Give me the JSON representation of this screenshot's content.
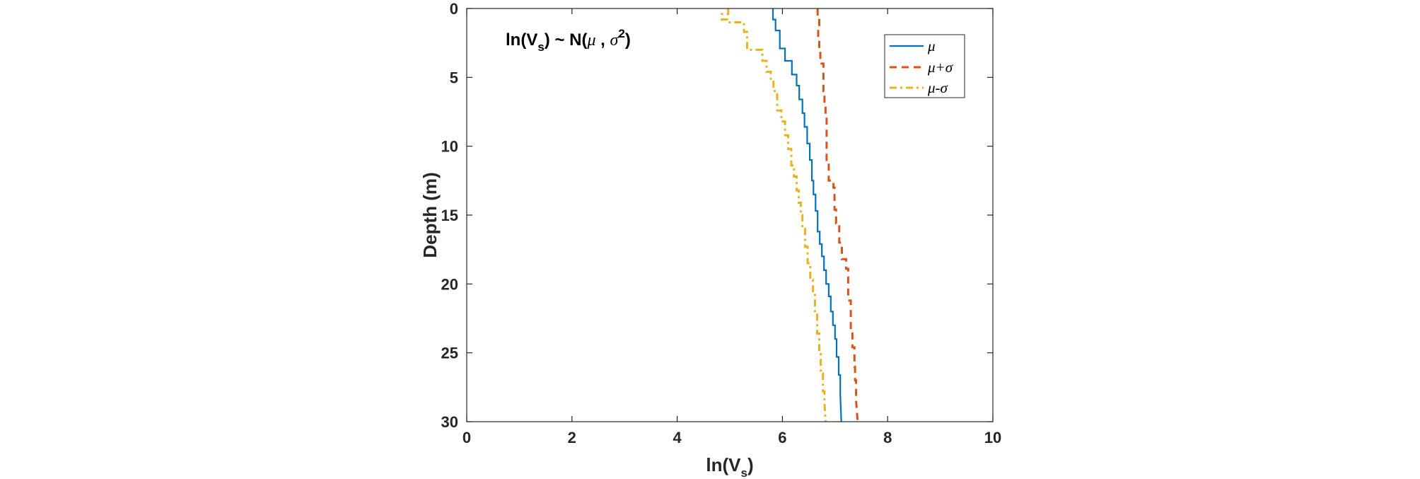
{
  "chart_data": {
    "type": "line",
    "annotation": {
      "parts": [
        "ln(V",
        "s",
        ") ~ N(",
        "μ",
        " , ",
        "σ",
        "2",
        ")"
      ]
    },
    "xlabel": {
      "main": "ln(V",
      "sub": "s",
      "close": ")"
    },
    "ylabel": "Depth (m)",
    "xlim": [
      0,
      10
    ],
    "ylim": [
      0,
      30
    ],
    "y_reversed": true,
    "x_ticks": [
      0,
      2,
      4,
      6,
      8,
      10
    ],
    "x_tick_labels": [
      "0",
      "2",
      "4",
      "6",
      "8",
      "10"
    ],
    "y_ticks": [
      0,
      5,
      10,
      15,
      20,
      25,
      30
    ],
    "y_tick_labels": [
      "0",
      "5",
      "10",
      "15",
      "20",
      "25",
      "30"
    ],
    "grid": false,
    "legend_position": "top-right",
    "series": [
      {
        "name": "μ",
        "color": "#0072BD",
        "style": "solid",
        "x": [
          5.82,
          5.82,
          5.87,
          5.87,
          5.95,
          5.95,
          6.05,
          6.05,
          6.18,
          6.18,
          6.27,
          6.27,
          6.32,
          6.32,
          6.38,
          6.38,
          6.42,
          6.42,
          6.47,
          6.47,
          6.52,
          6.52,
          6.56,
          6.56,
          6.59,
          6.59,
          6.63,
          6.63,
          6.67,
          6.67,
          6.71,
          6.71,
          6.75,
          6.75,
          6.79,
          6.79,
          6.83,
          6.83,
          6.88,
          6.88,
          6.92,
          6.92,
          6.96,
          6.96,
          7.0,
          7.0,
          7.03,
          7.03,
          7.07,
          7.07,
          7.1,
          7.1,
          7.12
        ],
        "depth": [
          0,
          0.8,
          0.8,
          1.6,
          1.6,
          2.9,
          2.9,
          3.8,
          3.8,
          4.8,
          4.8,
          5.6,
          5.6,
          6.6,
          6.6,
          7.6,
          7.6,
          8.6,
          8.6,
          9.8,
          9.8,
          11.0,
          11.0,
          12.5,
          12.5,
          13.5,
          13.5,
          14.7,
          14.7,
          16.2,
          16.2,
          17.1,
          17.1,
          18.0,
          18.0,
          19.0,
          19.0,
          20.0,
          20.0,
          20.9,
          20.9,
          22.0,
          22.0,
          23.0,
          23.0,
          24.0,
          24.0,
          25.3,
          25.3,
          26.6,
          26.6,
          28.0,
          30.0
        ]
      },
      {
        "name": "μ+σ",
        "color": "#D95319",
        "style": "dashed",
        "x": [
          6.67,
          6.67,
          6.7,
          6.7,
          6.68,
          6.68,
          6.7,
          6.7,
          6.72,
          6.72,
          6.78,
          6.78,
          6.8,
          6.8,
          6.82,
          6.82,
          6.84,
          6.84,
          6.88,
          6.88,
          6.97,
          6.97,
          6.99,
          6.99,
          7.02,
          7.02,
          7.08,
          7.08,
          7.13,
          7.13,
          7.21,
          7.21,
          7.25,
          7.25,
          7.3,
          7.3,
          7.33,
          7.33,
          7.37,
          7.37,
          7.38,
          7.38,
          7.4,
          7.4,
          7.43
        ],
        "depth": [
          0,
          0.6,
          0.6,
          1.2,
          1.2,
          2.2,
          2.2,
          3.0,
          3.0,
          4.0,
          4.0,
          6.0,
          6.0,
          7.0,
          7.0,
          8.0,
          8.0,
          11.0,
          11.0,
          12.5,
          12.5,
          13.0,
          13.0,
          14.6,
          14.6,
          15.6,
          15.6,
          17.0,
          17.0,
          18.2,
          18.2,
          18.9,
          18.9,
          21.2,
          21.2,
          23.4,
          23.4,
          24.6,
          24.6,
          26.0,
          26.0,
          27.0,
          27.0,
          28.5,
          30.0
        ]
      },
      {
        "name": "μ-σ",
        "color": "#EDB120",
        "style": "dashdot",
        "x": [
          4.97,
          4.97,
          4.85,
          4.85,
          4.95,
          4.95,
          5.27,
          5.27,
          5.33,
          5.33,
          5.62,
          5.62,
          5.7,
          5.7,
          5.78,
          5.78,
          5.83,
          5.83,
          5.9,
          5.9,
          5.98,
          5.98,
          6.05,
          6.05,
          6.11,
          6.11,
          6.17,
          6.17,
          6.22,
          6.22,
          6.27,
          6.27,
          6.31,
          6.31,
          6.35,
          6.35,
          6.38,
          6.38,
          6.43,
          6.43,
          6.48,
          6.48,
          6.53,
          6.53,
          6.58,
          6.58,
          6.62,
          6.62,
          6.66,
          6.66,
          6.7,
          6.7,
          6.73,
          6.73,
          6.77,
          6.77,
          6.8,
          6.8,
          6.82
        ],
        "depth": [
          0,
          0.4,
          0.4,
          0.8,
          0.8,
          1.0,
          1.0,
          1.7,
          1.7,
          3.0,
          3.0,
          3.8,
          3.8,
          4.6,
          4.6,
          5.2,
          5.2,
          6.0,
          6.0,
          7.4,
          7.4,
          8.2,
          8.2,
          9.2,
          9.2,
          10.2,
          10.2,
          11.4,
          11.4,
          12.2,
          12.2,
          13.2,
          13.2,
          14.1,
          14.1,
          15.0,
          15.0,
          16.0,
          16.0,
          17.3,
          17.3,
          18.5,
          18.5,
          19.7,
          19.7,
          20.8,
          20.8,
          22.1,
          22.1,
          23.6,
          23.6,
          25.0,
          25.0,
          26.5,
          26.5,
          27.8,
          27.8,
          28.6,
          30.0
        ]
      }
    ]
  }
}
